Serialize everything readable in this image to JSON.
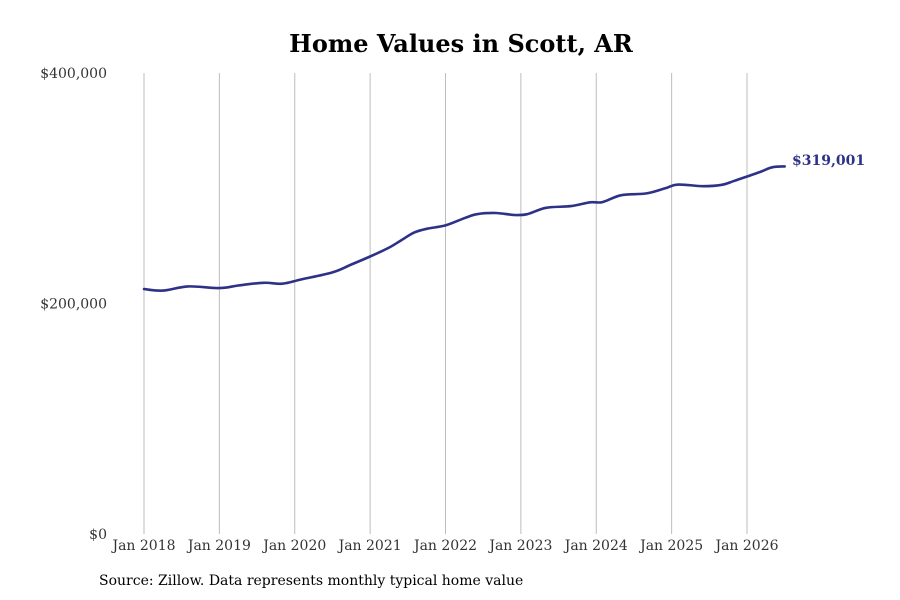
{
  "chart_data": {
    "type": "line",
    "title": "Home Values in Scott, AR",
    "xlabel": "",
    "ylabel": "",
    "ylim": [
      0,
      400000
    ],
    "y_ticks": [
      0,
      200000,
      400000
    ],
    "y_tick_labels": [
      "$0",
      "$200,000",
      "$400,000"
    ],
    "x_ticks": [
      "2018-01",
      "2019-01",
      "2020-01",
      "2021-01",
      "2022-01",
      "2023-01",
      "2024-01",
      "2025-01",
      "2026-01"
    ],
    "x_tick_labels": [
      "Jan 2018",
      "Jan 2019",
      "Jan 2020",
      "Jan 2021",
      "Jan 2022",
      "Jan 2023",
      "Jan 2024",
      "Jan 2025",
      "Jan 2026"
    ],
    "grid": "vertical",
    "line_color": "#2e3287",
    "end_label": "$319,001",
    "series": [
      {
        "values": [
          {
            "x": "2018-01",
            "y": 212500
          },
          {
            "x": "2018-04",
            "y": 211200
          },
          {
            "x": "2018-08",
            "y": 214800
          },
          {
            "x": "2019-01",
            "y": 213400
          },
          {
            "x": "2019-04",
            "y": 215600
          },
          {
            "x": "2019-08",
            "y": 218000
          },
          {
            "x": "2019-11",
            "y": 217200
          },
          {
            "x": "2020-02",
            "y": 220800
          },
          {
            "x": "2020-07",
            "y": 227000
          },
          {
            "x": "2020-10",
            "y": 233800
          },
          {
            "x": "2021-01",
            "y": 240800
          },
          {
            "x": "2021-04",
            "y": 248500
          },
          {
            "x": "2021-06",
            "y": 255000
          },
          {
            "x": "2021-08",
            "y": 261500
          },
          {
            "x": "2021-10",
            "y": 264800
          },
          {
            "x": "2022-01",
            "y": 267800
          },
          {
            "x": "2022-04",
            "y": 274000
          },
          {
            "x": "2022-06",
            "y": 277500
          },
          {
            "x": "2022-09",
            "y": 278500
          },
          {
            "x": "2022-12",
            "y": 276800
          },
          {
            "x": "2023-02",
            "y": 277500
          },
          {
            "x": "2023-05",
            "y": 283000
          },
          {
            "x": "2023-09",
            "y": 284500
          },
          {
            "x": "2023-12",
            "y": 287800
          },
          {
            "x": "2024-02",
            "y": 288000
          },
          {
            "x": "2024-05",
            "y": 294000
          },
          {
            "x": "2024-09",
            "y": 295500
          },
          {
            "x": "2024-12",
            "y": 300000
          },
          {
            "x": "2025-02",
            "y": 303200
          },
          {
            "x": "2025-06",
            "y": 301800
          },
          {
            "x": "2025-09",
            "y": 303000
          },
          {
            "x": "2025-11",
            "y": 306500
          },
          {
            "x": "2026-03",
            "y": 314000
          },
          {
            "x": "2026-05",
            "y": 318200
          },
          {
            "x": "2026-07",
            "y": 319001
          }
        ]
      }
    ]
  },
  "footer": {
    "source": "Source: Zillow. Data represents monthly typical home value"
  }
}
